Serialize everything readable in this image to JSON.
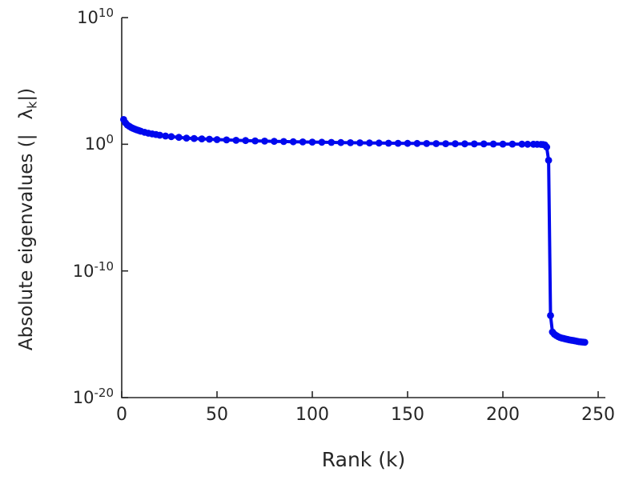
{
  "chart_data": {
    "type": "line",
    "title": "",
    "xlabel": "Rank (k)",
    "ylabel_parts": {
      "prefix": "Absolute eigenvalues (|",
      "lambda": "λ",
      "subscript": "k",
      "suffix": "|)"
    },
    "x_ticks": [
      0,
      50,
      100,
      150,
      200,
      250
    ],
    "y_ticks": [
      {
        "base": "10",
        "exp": "10"
      },
      {
        "base": "10",
        "exp": "0"
      },
      {
        "base": "10",
        "exp": "-10"
      },
      {
        "base": "10",
        "exp": "-20"
      }
    ],
    "xlim": [
      0,
      253
    ],
    "ylim_exponents": [
      -20,
      10
    ],
    "grid": false,
    "legend": null,
    "series": [
      {
        "name": "absolute-eigenvalues",
        "color": "#0008ee",
        "marker": "circle",
        "points": [
          [
            1,
            90
          ],
          [
            2,
            48
          ],
          [
            3,
            33
          ],
          [
            4,
            26
          ],
          [
            5,
            21
          ],
          [
            6,
            18
          ],
          [
            7,
            15.5
          ],
          [
            8,
            13.5
          ],
          [
            9,
            12
          ],
          [
            10,
            10.8
          ],
          [
            12,
            8.8
          ],
          [
            14,
            7.5
          ],
          [
            16,
            6.6
          ],
          [
            18,
            5.9
          ],
          [
            20,
            5.2
          ],
          [
            23,
            4.5
          ],
          [
            26,
            4.0
          ],
          [
            30,
            3.5
          ],
          [
            34,
            3.1
          ],
          [
            38,
            2.85
          ],
          [
            42,
            2.65
          ],
          [
            46,
            2.5
          ],
          [
            50,
            2.35
          ],
          [
            55,
            2.2
          ],
          [
            60,
            2.05
          ],
          [
            65,
            1.95
          ],
          [
            70,
            1.85
          ],
          [
            75,
            1.78
          ],
          [
            80,
            1.7
          ],
          [
            85,
            1.64
          ],
          [
            90,
            1.58
          ],
          [
            95,
            1.53
          ],
          [
            100,
            1.48
          ],
          [
            105,
            1.44
          ],
          [
            110,
            1.4
          ],
          [
            115,
            1.36
          ],
          [
            120,
            1.33
          ],
          [
            125,
            1.3
          ],
          [
            130,
            1.27
          ],
          [
            135,
            1.25
          ],
          [
            140,
            1.22
          ],
          [
            145,
            1.2
          ],
          [
            150,
            1.18
          ],
          [
            155,
            1.16
          ],
          [
            160,
            1.14
          ],
          [
            165,
            1.13
          ],
          [
            170,
            1.11
          ],
          [
            175,
            1.1
          ],
          [
            180,
            1.08
          ],
          [
            185,
            1.07
          ],
          [
            190,
            1.06
          ],
          [
            195,
            1.05
          ],
          [
            200,
            1.04
          ],
          [
            205,
            1.03
          ],
          [
            210,
            1.02
          ],
          [
            213,
            1.01
          ],
          [
            216,
            1.0
          ],
          [
            218,
            0.99
          ],
          [
            220,
            0.97
          ],
          [
            221,
            0.95
          ],
          [
            222,
            0.9
          ],
          [
            223,
            0.6
          ],
          [
            224,
            0.054
          ],
          [
            225,
            3e-14
          ],
          [
            226,
            1.5e-15
          ],
          [
            227,
            1e-15
          ],
          [
            228,
            8e-16
          ],
          [
            229,
            6.5e-16
          ],
          [
            230,
            5.5e-16
          ],
          [
            231,
            5e-16
          ],
          [
            232,
            4.6e-16
          ],
          [
            233,
            4.2e-16
          ],
          [
            234,
            3.9e-16
          ],
          [
            235,
            3.6e-16
          ],
          [
            236,
            3.4e-16
          ],
          [
            237,
            3.2e-16
          ],
          [
            238,
            3e-16
          ],
          [
            239,
            2.8e-16
          ],
          [
            240,
            2.6e-16
          ],
          [
            241,
            2.5e-16
          ],
          [
            242,
            2.4e-16
          ],
          [
            243,
            2.3e-16
          ]
        ]
      }
    ]
  },
  "colors": {
    "axis": "#262626",
    "background": "#ffffff",
    "line": "#0008ee"
  }
}
